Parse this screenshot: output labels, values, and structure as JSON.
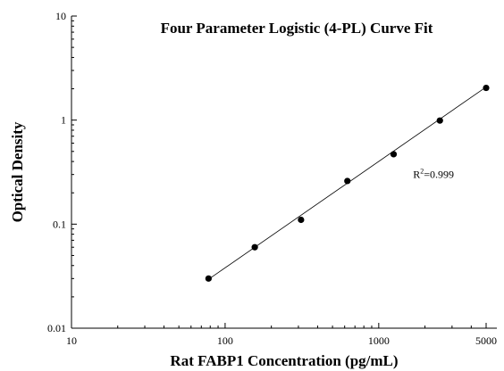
{
  "chart_data": {
    "type": "scatter",
    "title": "Four Parameter Logistic (4-PL) Curve Fit",
    "xlabel": "Rat FABP1 Concentration (pg/mL)",
    "ylabel": "Optical Density",
    "x_scale": "log",
    "y_scale": "log",
    "xlim": [
      10,
      5000
    ],
    "ylim": [
      0.01,
      10
    ],
    "x_ticks": [
      {
        "value": 10,
        "label": "10"
      },
      {
        "value": 100,
        "label": "100"
      },
      {
        "value": 1000,
        "label": "1000"
      },
      {
        "value": 5000,
        "label": "5000"
      }
    ],
    "y_ticks": [
      {
        "value": 0.01,
        "label": "0.01"
      },
      {
        "value": 0.1,
        "label": "0.1"
      },
      {
        "value": 1,
        "label": "1"
      },
      {
        "value": 10,
        "label": "10"
      }
    ],
    "annotation": {
      "label": "R",
      "superscript": "2",
      "value": "=0.999",
      "x": 2500,
      "y": 0.3
    },
    "grid": false,
    "legend": "none",
    "series": [
      {
        "x": [
          78,
          156,
          312,
          625,
          1250,
          2500,
          5000
        ],
        "y": [
          0.03,
          0.06,
          0.11,
          0.26,
          0.47,
          0.99,
          2.04
        ]
      }
    ],
    "fit_line": {
      "x": [
        78,
        5000
      ],
      "y": [
        0.0295,
        2.08
      ]
    }
  }
}
